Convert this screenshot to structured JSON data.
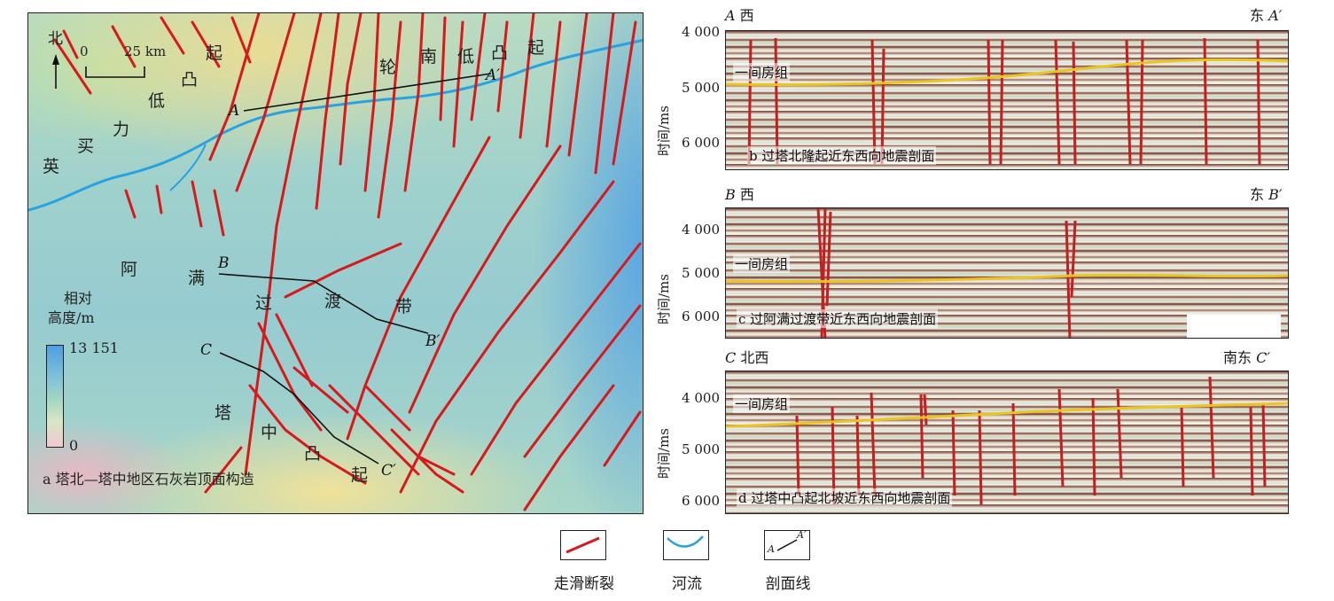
{
  "map": {
    "caption": "a 塔北—塔中地区石灰岩顶面构造",
    "north": "北",
    "scale_zero": "0",
    "scale_km": "25 km",
    "legend_title_1": "相对",
    "legend_title_2": "高度/m",
    "legend_max": "13 151",
    "legend_min": "0",
    "regions": {
      "yingmaili": [
        "英",
        "买",
        "力",
        "低",
        "凸",
        "起"
      ],
      "lunnan": [
        "轮",
        "南",
        "低",
        "凸",
        "起"
      ],
      "aman": [
        "阿",
        "满",
        "过",
        "渡",
        "带"
      ],
      "tazhong": [
        "塔",
        "中",
        "凸",
        "起"
      ]
    },
    "points": {
      "A": "A",
      "A2": "A′",
      "B": "B",
      "B2": "B′",
      "C": "C",
      "C2": "C′"
    }
  },
  "profiles": [
    {
      "id": "b",
      "left": "A 西",
      "left_letter": "A",
      "left_dir": "西",
      "right_dir": "东",
      "right_letter": "A′",
      "ticks": [
        "4 000",
        "5 000",
        "6 000"
      ],
      "ylabel": "时间/ms",
      "horizon": "一间房组",
      "caption": "b 过塔北隆起近东西向地震剖面"
    },
    {
      "id": "c",
      "left_letter": "B",
      "left_dir": "西",
      "right_dir": "东",
      "right_letter": "B′",
      "ticks": [
        "4 000",
        "5 000",
        "6 000"
      ],
      "ylabel": "时间/ms",
      "horizon": "一间房组",
      "caption": "c 过阿满过渡带近东西向地震剖面"
    },
    {
      "id": "d",
      "left_letter": "C",
      "left_dir": "北西",
      "right_dir": "南东",
      "right_letter": "C′",
      "ticks": [
        "4 000",
        "5 000",
        "6 000"
      ],
      "ylabel": "时间/ms",
      "horizon": "一间房组",
      "caption": "d 过塔中凸起北坡近东西向地震剖面"
    }
  ],
  "legend": {
    "items": [
      {
        "label": "走滑断裂",
        "icon": "fault-icon",
        "color": "#d7191c"
      },
      {
        "label": "河流",
        "icon": "river-icon",
        "color": "#2aa2e0"
      },
      {
        "label": "剖面线",
        "icon": "profile-line-icon",
        "color": "#111111",
        "a": "A",
        "a2": "A′"
      }
    ]
  },
  "colors": {
    "fault": "#d7191c",
    "river": "#2aa2e0",
    "horizon": "#f5c400"
  }
}
